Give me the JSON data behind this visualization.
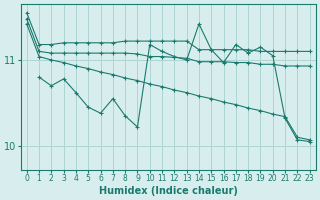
{
  "xlabel": "Humidex (Indice chaleur)",
  "background_color": "#d8eeee",
  "grid_color": "#aed4d4",
  "line_color": "#1a7a6e",
  "xlim": [
    -0.5,
    23.5
  ],
  "ylim": [
    9.72,
    11.65
  ],
  "yticks": [
    10,
    11
  ],
  "xticks": [
    0,
    1,
    2,
    3,
    4,
    5,
    6,
    7,
    8,
    9,
    10,
    11,
    12,
    13,
    14,
    15,
    16,
    17,
    18,
    19,
    20,
    21,
    22,
    23
  ],
  "series": [
    {
      "x": [
        0,
        1,
        2,
        3,
        4,
        5,
        6,
        7,
        8,
        9,
        10,
        11,
        12,
        13,
        14,
        15,
        16,
        17,
        18,
        19,
        20,
        21,
        22,
        23
      ],
      "y": [
        11.55,
        11.18,
        11.18,
        11.2,
        11.2,
        11.2,
        11.2,
        11.2,
        11.22,
        11.22,
        11.22,
        11.22,
        11.22,
        11.22,
        11.12,
        11.12,
        11.12,
        11.12,
        11.12,
        11.1,
        11.1,
        11.1,
        11.1,
        11.1
      ]
    },
    {
      "x": [
        0,
        1,
        2,
        3,
        4,
        5,
        6,
        7,
        8,
        9,
        10,
        11,
        12,
        13,
        14,
        15,
        16,
        17,
        18,
        19,
        20,
        21,
        22,
        23
      ],
      "y": [
        11.48,
        11.1,
        11.08,
        11.08,
        11.08,
        11.08,
        11.08,
        11.08,
        11.08,
        11.07,
        11.04,
        11.04,
        11.03,
        11.02,
        10.98,
        10.98,
        10.98,
        10.97,
        10.97,
        10.95,
        10.95,
        10.93,
        10.93,
        10.93
      ]
    },
    {
      "x": [
        0,
        1,
        2,
        3,
        4,
        5,
        6,
        7,
        8,
        9,
        10,
        11,
        12,
        13,
        14,
        15,
        16,
        17,
        18,
        19,
        20,
        21,
        22,
        23
      ],
      "y": [
        11.42,
        11.04,
        11.0,
        10.97,
        10.93,
        10.9,
        10.86,
        10.83,
        10.79,
        10.76,
        10.72,
        10.69,
        10.65,
        10.62,
        10.58,
        10.55,
        10.51,
        10.48,
        10.44,
        10.41,
        10.37,
        10.34,
        10.1,
        10.07
      ]
    },
    {
      "x": [
        1,
        2,
        3,
        4,
        5,
        6,
        7,
        8,
        9,
        10,
        11,
        12,
        13,
        14,
        15,
        16,
        17,
        18,
        19,
        20,
        21,
        22,
        23
      ],
      "y": [
        10.8,
        10.7,
        10.78,
        10.62,
        10.45,
        10.38,
        10.55,
        10.35,
        10.22,
        11.18,
        11.1,
        11.04,
        11.0,
        11.42,
        11.12,
        10.97,
        11.18,
        11.08,
        11.15,
        11.05,
        10.32,
        10.07,
        10.05
      ]
    }
  ]
}
